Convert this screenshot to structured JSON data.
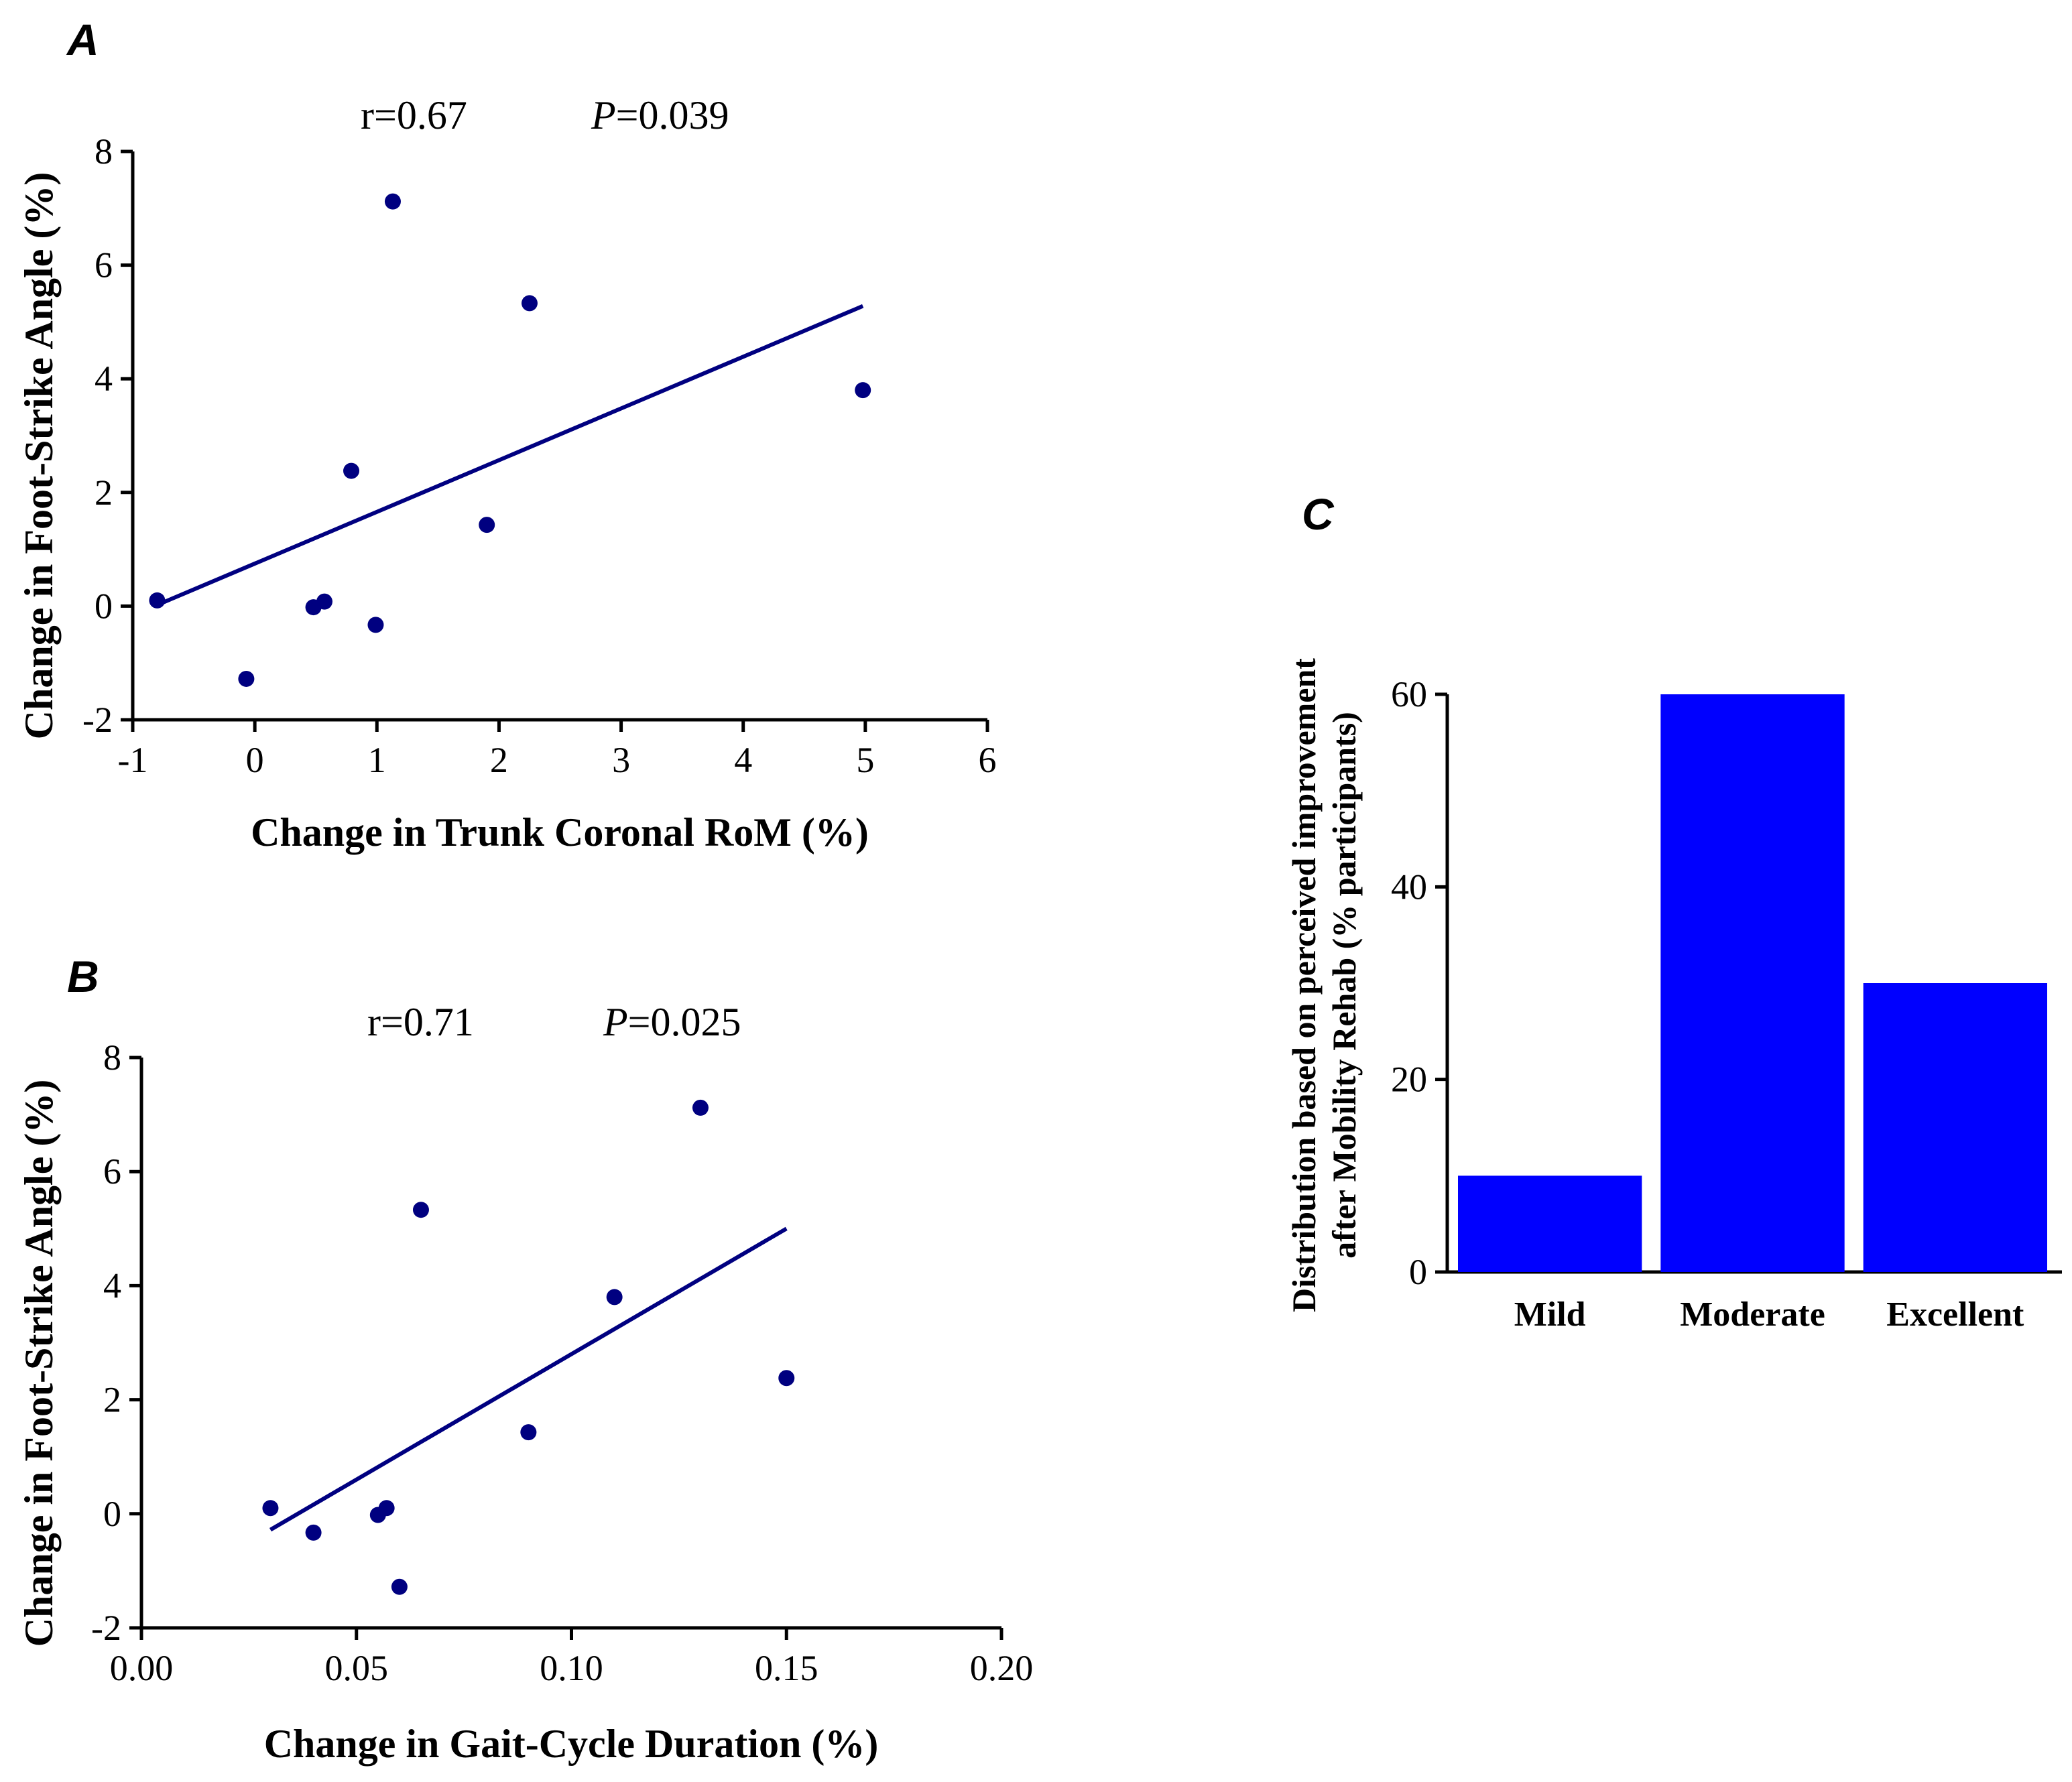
{
  "chart_data": [
    {
      "panel": "A",
      "type": "scatter",
      "xlabel": "Change in Trunk Coronal RoM (%)",
      "ylabel": "Change in Foot-Strike Angle (%)",
      "xlim": [
        -1,
        6
      ],
      "ylim": [
        -2,
        8
      ],
      "xticks": [
        "-1",
        "0",
        "1",
        "2",
        "3",
        "4",
        "5",
        "6"
      ],
      "yticks": [
        "-2",
        "0",
        "2",
        "4",
        "6",
        "8"
      ],
      "stat_r": "r=0.67",
      "stat_p_label": "P",
      "stat_p_value": "=0.039",
      "points": [
        {
          "x": -0.8,
          "y": 0.1
        },
        {
          "x": -0.07,
          "y": -1.28
        },
        {
          "x": 0.48,
          "y": -0.02
        },
        {
          "x": 0.57,
          "y": 0.08
        },
        {
          "x": 0.99,
          "y": -0.33
        },
        {
          "x": 0.79,
          "y": 2.38
        },
        {
          "x": 1.13,
          "y": 7.12
        },
        {
          "x": 1.9,
          "y": 1.43
        },
        {
          "x": 2.25,
          "y": 5.33
        },
        {
          "x": 4.98,
          "y": 3.8
        }
      ],
      "fit_line": [
        {
          "x": -0.8,
          "y": 0.02
        },
        {
          "x": 4.98,
          "y": 5.28
        }
      ],
      "marker_color": "#000080",
      "line_color": "#000080"
    },
    {
      "panel": "B",
      "type": "scatter",
      "xlabel": "Change in Gait-Cycle Duration (%)",
      "ylabel": "Change in Foot-Strike Angle (%)",
      "xlim": [
        0,
        0.2
      ],
      "ylim": [
        -2,
        8
      ],
      "xticks": [
        "0.00",
        "0.05",
        "0.10",
        "0.15",
        "0.20"
      ],
      "yticks": [
        "-2",
        "0",
        "2",
        "4",
        "6",
        "8"
      ],
      "stat_r": "r=0.71",
      "stat_p_label": "P",
      "stat_p_value": "=0.025",
      "points": [
        {
          "x": 0.03,
          "y": 0.1
        },
        {
          "x": 0.04,
          "y": -0.33
        },
        {
          "x": 0.055,
          "y": -0.02
        },
        {
          "x": 0.057,
          "y": 0.1
        },
        {
          "x": 0.06,
          "y": -1.28
        },
        {
          "x": 0.065,
          "y": 5.33
        },
        {
          "x": 0.09,
          "y": 1.43
        },
        {
          "x": 0.11,
          "y": 3.8
        },
        {
          "x": 0.13,
          "y": 7.12
        },
        {
          "x": 0.15,
          "y": 2.38
        }
      ],
      "fit_line": [
        {
          "x": 0.03,
          "y": -0.28
        },
        {
          "x": 0.15,
          "y": 5.0
        }
      ],
      "marker_color": "#000080",
      "line_color": "#000080"
    },
    {
      "panel": "C",
      "type": "bar",
      "categories": [
        "Mild",
        "Moderate",
        "Excellent"
      ],
      "values": [
        10,
        60,
        30
      ],
      "ylabel_line1": "Distribution based on perceived improvement",
      "ylabel_line2": "after Mobility Rehab (% participants)",
      "ylim": [
        0,
        60
      ],
      "yticks": [
        "0",
        "20",
        "40",
        "60"
      ],
      "bar_color": "#0000FF"
    }
  ]
}
